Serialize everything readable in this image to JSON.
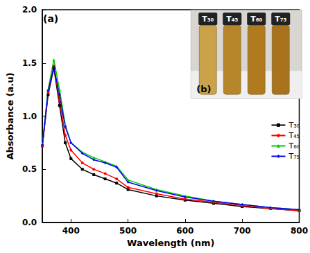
{
  "chart_data": {
    "type": "line",
    "xlabel": "Wavelength (nm)",
    "ylabel": "Absorbance (a.u)",
    "annotations": [
      "(a)"
    ],
    "inset": {
      "label": "(b)",
      "labels": [
        "T₃₀",
        "T₄₅",
        "T₆₀",
        "T₇₅"
      ]
    },
    "xlim": [
      350,
      800
    ],
    "xticks": [
      400,
      500,
      600,
      700,
      800
    ],
    "ylim": [
      0,
      2
    ],
    "yticks": [
      {
        "value": 0,
        "label": "0.0"
      },
      {
        "value": 0.5,
        "label": "0.5"
      },
      {
        "value": 1,
        "label": "1.0"
      },
      {
        "value": 1.5,
        "label": "1.5"
      },
      {
        "value": 2,
        "label": "2.0"
      }
    ],
    "legend": "right",
    "x": [
      350,
      360,
      370,
      380,
      390,
      400,
      420,
      440,
      460,
      480,
      500,
      550,
      600,
      650,
      700,
      750,
      800
    ],
    "series": [
      {
        "name": "T₃₀",
        "color": "#000000",
        "marker": "square",
        "line_style": "solid",
        "values": [
          0.72,
          1.2,
          1.45,
          1.1,
          0.75,
          0.6,
          0.5,
          0.45,
          0.41,
          0.37,
          0.31,
          0.25,
          0.21,
          0.18,
          0.15,
          0.13,
          0.11
        ]
      },
      {
        "name": "T₄₅",
        "color": "#ff0000",
        "marker": "circle",
        "line_style": "solid",
        "values": [
          0.72,
          1.22,
          1.47,
          1.15,
          0.82,
          0.68,
          0.56,
          0.5,
          0.46,
          0.41,
          0.33,
          0.27,
          0.22,
          0.19,
          0.16,
          0.13,
          0.11
        ]
      },
      {
        "name": "T₆₀",
        "color": "#00cc00",
        "marker": "triangle",
        "line_style": "solid",
        "values": [
          0.74,
          1.25,
          1.53,
          1.25,
          0.92,
          0.75,
          0.66,
          0.61,
          0.57,
          0.53,
          0.4,
          0.31,
          0.25,
          0.2,
          0.17,
          0.14,
          0.12
        ]
      },
      {
        "name": "T₇₅",
        "color": "#0000ff",
        "marker": "diamond",
        "line_style": "solid",
        "values": [
          0.73,
          1.24,
          1.46,
          1.2,
          0.9,
          0.75,
          0.65,
          0.59,
          0.56,
          0.52,
          0.38,
          0.3,
          0.24,
          0.2,
          0.17,
          0.14,
          0.12
        ]
      }
    ]
  }
}
